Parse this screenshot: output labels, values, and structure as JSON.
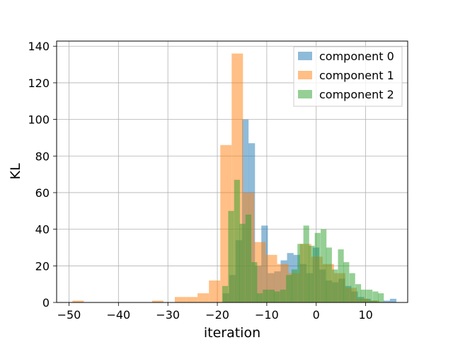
{
  "chart_data": {
    "type": "bar",
    "subtype": "overlapping-histogram",
    "xlabel": "iteration",
    "ylabel": "KL",
    "xlim": [
      -52.5,
      18.5
    ],
    "ylim": [
      0,
      142.8
    ],
    "xticks": [
      -50,
      -40,
      -30,
      -20,
      -10,
      0,
      10
    ],
    "yticks": [
      0,
      20,
      40,
      60,
      80,
      100,
      120,
      140
    ],
    "grid": true,
    "legend_position": "top-right",
    "series": [
      {
        "name": "component 0",
        "color": "#1f77b4",
        "bin_width": 1.32,
        "bins": [
          [
            -18.9,
            5
          ],
          [
            -17.6,
            15
          ],
          [
            -16.3,
            34
          ],
          [
            -15.0,
            100
          ],
          [
            -13.7,
            87
          ],
          [
            -12.4,
            20
          ],
          [
            -11.1,
            42
          ],
          [
            -9.8,
            16
          ],
          [
            -8.5,
            17
          ],
          [
            -7.2,
            23
          ],
          [
            -5.9,
            27
          ],
          [
            -4.6,
            26
          ],
          [
            -3.3,
            21
          ],
          [
            -2.0,
            16
          ],
          [
            -0.7,
            30
          ],
          [
            0.6,
            18
          ],
          [
            1.9,
            12
          ],
          [
            3.2,
            11
          ],
          [
            4.5,
            13
          ],
          [
            5.8,
            9
          ],
          [
            7.1,
            6
          ],
          [
            8.4,
            3
          ],
          [
            9.7,
            2
          ],
          [
            11.0,
            1
          ],
          [
            12.3,
            0
          ],
          [
            13.6,
            1
          ],
          [
            14.9,
            2
          ]
        ]
      },
      {
        "name": "component 1",
        "color": "#ff7f0e",
        "bin_width": 2.29,
        "bins": [
          [
            -49.3,
            1
          ],
          [
            -47.0,
            0
          ],
          [
            -44.7,
            0
          ],
          [
            -42.4,
            0
          ],
          [
            -40.1,
            0
          ],
          [
            -37.8,
            0
          ],
          [
            -35.5,
            0
          ],
          [
            -33.2,
            1
          ],
          [
            -30.9,
            0
          ],
          [
            -28.6,
            3
          ],
          [
            -26.3,
            3
          ],
          [
            -24.0,
            5
          ],
          [
            -21.7,
            12
          ],
          [
            -19.4,
            86
          ],
          [
            -17.1,
            136
          ],
          [
            -14.8,
            60
          ],
          [
            -12.5,
            33
          ],
          [
            -10.2,
            26
          ],
          [
            -7.9,
            21
          ],
          [
            -5.6,
            16
          ],
          [
            -3.3,
            32
          ],
          [
            -1.0,
            25
          ],
          [
            1.3,
            21
          ],
          [
            3.6,
            16
          ],
          [
            5.9,
            8
          ],
          [
            8.2,
            2
          ],
          [
            10.5,
            1
          ],
          [
            12.8,
            0
          ],
          [
            15.1,
            0
          ]
        ]
      },
      {
        "name": "component 2",
        "color": "#2ca02c",
        "bin_width": 1.17,
        "bins": [
          [
            -19.0,
            9
          ],
          [
            -17.8,
            50
          ],
          [
            -16.6,
            67
          ],
          [
            -15.5,
            43
          ],
          [
            -14.3,
            48
          ],
          [
            -13.1,
            22
          ],
          [
            -12.0,
            5
          ],
          [
            -10.8,
            7
          ],
          [
            -9.6,
            7
          ],
          [
            -8.5,
            6
          ],
          [
            -7.3,
            7
          ],
          [
            -6.1,
            15
          ],
          [
            -5.0,
            18
          ],
          [
            -3.8,
            32
          ],
          [
            -2.6,
            42
          ],
          [
            -1.5,
            31
          ],
          [
            -0.3,
            38
          ],
          [
            0.9,
            40
          ],
          [
            2.0,
            30
          ],
          [
            3.2,
            18
          ],
          [
            4.4,
            29
          ],
          [
            5.5,
            22
          ],
          [
            6.7,
            16
          ],
          [
            7.9,
            10
          ],
          [
            9.0,
            7
          ],
          [
            10.2,
            7
          ],
          [
            11.4,
            6
          ],
          [
            12.5,
            5
          ]
        ]
      }
    ]
  }
}
